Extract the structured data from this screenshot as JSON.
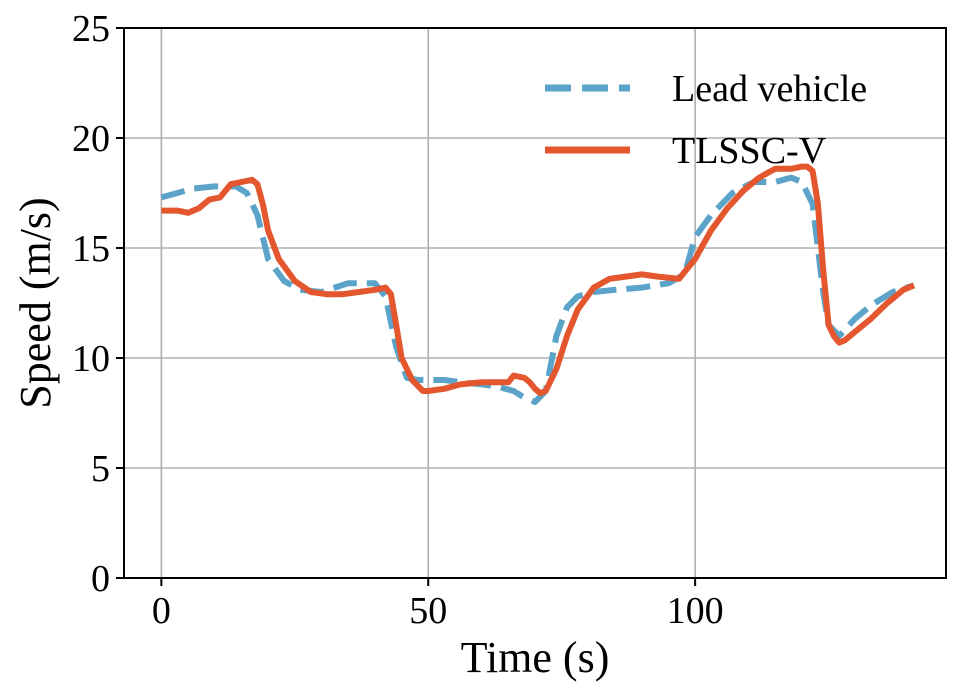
{
  "chart_data": {
    "type": "line",
    "title": "",
    "xlabel": "Time (s)",
    "ylabel": "Speed (m/s)",
    "xlim": [
      -7,
      147
    ],
    "ylim": [
      0,
      25
    ],
    "xticks": [
      0,
      50,
      100
    ],
    "yticks": [
      0,
      5,
      10,
      15,
      20,
      25
    ],
    "grid": true,
    "legend_position": "top-right",
    "colors": {
      "lead": "#5ba3c9",
      "tlssc": "#e4572e"
    },
    "series": [
      {
        "name": "Lead vehicle",
        "style": "dashed",
        "color": "#5ba3c9",
        "x": [
          0,
          3,
          6,
          10,
          14,
          16,
          18,
          20,
          23,
          26,
          30,
          35,
          40,
          42,
          44,
          46,
          48,
          50,
          53,
          56,
          60,
          63,
          66,
          68,
          70,
          72,
          74,
          76,
          78,
          81,
          85,
          90,
          95,
          98,
          100,
          103,
          107,
          111,
          115,
          118,
          120,
          122,
          123,
          124,
          125,
          127,
          130,
          133,
          137,
          141
        ],
        "y": [
          17.3,
          17.5,
          17.7,
          17.8,
          17.8,
          17.5,
          16.5,
          14.5,
          13.5,
          13.1,
          13.0,
          13.4,
          13.4,
          12.8,
          10.5,
          9.1,
          9.0,
          9.0,
          9.0,
          8.9,
          8.8,
          8.7,
          8.5,
          8.2,
          8.0,
          8.5,
          11.0,
          12.3,
          12.8,
          13.0,
          13.1,
          13.2,
          13.4,
          13.8,
          15.5,
          16.5,
          17.5,
          18.0,
          18.0,
          18.2,
          18.0,
          17.0,
          15.0,
          13.0,
          11.5,
          11.0,
          11.8,
          12.4,
          13.0,
          13.3
        ]
      },
      {
        "name": "TLSSC-V",
        "style": "solid",
        "color": "#e4572e",
        "x": [
          0,
          3,
          5,
          7,
          9,
          11,
          13,
          15,
          17,
          18,
          19,
          20,
          22,
          25,
          28,
          31,
          34,
          37,
          40,
          42,
          43,
          44,
          45,
          47,
          49,
          50,
          53,
          56,
          60,
          63,
          65,
          66,
          68,
          69,
          70,
          71,
          72,
          74,
          76,
          78,
          81,
          84,
          87,
          90,
          93,
          97,
          100,
          103,
          106,
          109,
          112,
          115,
          118,
          120,
          121,
          122,
          123,
          124,
          125,
          126,
          127,
          128,
          130,
          133,
          136,
          139,
          141
        ],
        "y": [
          16.7,
          16.7,
          16.6,
          16.8,
          17.2,
          17.3,
          17.9,
          18.0,
          18.1,
          17.9,
          17.0,
          15.8,
          14.5,
          13.5,
          13.0,
          12.9,
          12.9,
          13.0,
          13.1,
          13.2,
          12.9,
          11.5,
          10.0,
          9.0,
          8.5,
          8.5,
          8.6,
          8.8,
          8.9,
          8.9,
          8.9,
          9.2,
          9.1,
          8.9,
          8.6,
          8.4,
          8.5,
          9.5,
          11.0,
          12.2,
          13.2,
          13.6,
          13.7,
          13.8,
          13.7,
          13.6,
          14.5,
          15.8,
          16.8,
          17.6,
          18.2,
          18.6,
          18.6,
          18.7,
          18.7,
          18.5,
          17.0,
          14.0,
          11.5,
          11.0,
          10.7,
          10.8,
          11.2,
          11.8,
          12.5,
          13.1,
          13.3
        ]
      }
    ]
  }
}
